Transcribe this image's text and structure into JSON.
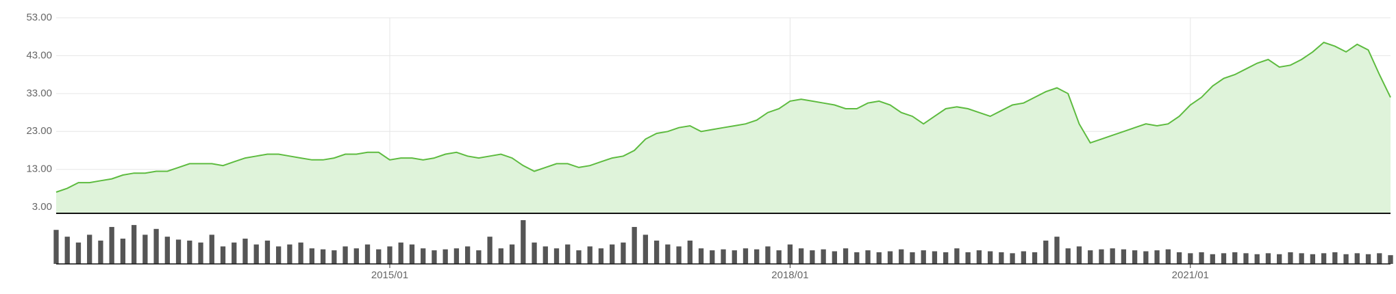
{
  "chart_data": {
    "type": "line",
    "x": [
      "2012/07",
      "2012/08",
      "2012/09",
      "2012/10",
      "2012/11",
      "2012/12",
      "2013/01",
      "2013/02",
      "2013/03",
      "2013/04",
      "2013/05",
      "2013/06",
      "2013/07",
      "2013/08",
      "2013/09",
      "2013/10",
      "2013/11",
      "2013/12",
      "2014/01",
      "2014/02",
      "2014/03",
      "2014/04",
      "2014/05",
      "2014/06",
      "2014/07",
      "2014/08",
      "2014/09",
      "2014/10",
      "2014/11",
      "2014/12",
      "2015/01",
      "2015/02",
      "2015/03",
      "2015/04",
      "2015/05",
      "2015/06",
      "2015/07",
      "2015/08",
      "2015/09",
      "2015/10",
      "2015/11",
      "2015/12",
      "2016/01",
      "2016/02",
      "2016/03",
      "2016/04",
      "2016/05",
      "2016/06",
      "2016/07",
      "2016/08",
      "2016/09",
      "2016/10",
      "2016/11",
      "2016/12",
      "2017/01",
      "2017/02",
      "2017/03",
      "2017/04",
      "2017/05",
      "2017/06",
      "2017/07",
      "2017/08",
      "2017/09",
      "2017/10",
      "2017/11",
      "2017/12",
      "2018/01",
      "2018/02",
      "2018/03",
      "2018/04",
      "2018/05",
      "2018/06",
      "2018/07",
      "2018/08",
      "2018/09",
      "2018/10",
      "2018/11",
      "2018/12",
      "2019/01",
      "2019/02",
      "2019/03",
      "2019/04",
      "2019/05",
      "2019/06",
      "2019/07",
      "2019/08",
      "2019/09",
      "2019/10",
      "2019/11",
      "2019/12",
      "2020/01",
      "2020/02",
      "2020/03",
      "2020/04",
      "2020/05",
      "2020/06",
      "2020/07",
      "2020/08",
      "2020/09",
      "2020/10",
      "2020/11",
      "2020/12",
      "2021/01",
      "2021/02",
      "2021/03",
      "2021/04",
      "2021/05",
      "2021/06",
      "2021/07",
      "2021/08",
      "2021/09",
      "2021/10",
      "2021/11",
      "2021/12",
      "2022/01",
      "2022/02",
      "2022/03",
      "2022/04",
      "2022/05",
      "2022/06",
      "2022/07"
    ],
    "series": [
      {
        "color": "#5dbb3f",
        "fill": "#dff3da",
        "values": [
          7,
          8,
          9.5,
          9.5,
          10,
          10.5,
          11.5,
          12,
          12,
          12.5,
          12.5,
          13.5,
          14.5,
          14.5,
          14.5,
          14,
          15,
          16,
          16.5,
          17,
          17,
          16.5,
          16,
          15.5,
          15.5,
          16,
          17,
          17,
          17.5,
          17.5,
          15.5,
          16,
          16,
          15.5,
          16,
          17,
          17.5,
          16.5,
          16,
          16.5,
          17,
          16,
          14,
          12.5,
          13.5,
          14.5,
          14.5,
          13.5,
          14,
          15,
          16,
          16.5,
          18,
          21,
          22.5,
          23,
          24,
          24.5,
          23,
          23.5,
          24,
          24.5,
          25,
          26,
          28,
          29,
          31,
          31.5,
          31,
          30.5,
          30,
          29,
          29,
          30.5,
          31,
          30,
          28,
          27,
          25,
          27,
          29,
          29.5,
          29,
          28,
          27,
          28.5,
          30,
          30.5,
          32,
          33.5,
          34.5,
          33,
          25,
          20,
          21,
          22,
          23,
          24,
          25,
          24.5,
          25,
          27,
          30,
          32,
          35,
          37,
          38,
          39.5,
          41,
          42,
          40,
          40.5,
          42,
          44,
          46.5,
          45.5,
          44,
          46,
          44.5,
          38,
          32
        ]
      },
      {
        "color": "#555555",
        "panel": "volume",
        "values": [
          35,
          28,
          22,
          30,
          24,
          38,
          26,
          40,
          30,
          36,
          28,
          25,
          24,
          22,
          30,
          18,
          22,
          26,
          20,
          24,
          18,
          20,
          22,
          16,
          15,
          14,
          18,
          16,
          20,
          15,
          18,
          22,
          20,
          16,
          14,
          15,
          16,
          18,
          14,
          28,
          16,
          20,
          45,
          22,
          18,
          16,
          20,
          14,
          18,
          16,
          20,
          22,
          38,
          30,
          24,
          20,
          18,
          24,
          16,
          14,
          15,
          14,
          16,
          15,
          18,
          14,
          20,
          16,
          14,
          15,
          13,
          16,
          12,
          14,
          12,
          13,
          15,
          12,
          14,
          13,
          12,
          16,
          12,
          14,
          13,
          12,
          11,
          13,
          12,
          24,
          28,
          16,
          18,
          14,
          15,
          16,
          15,
          14,
          13,
          14,
          15,
          12,
          11,
          12,
          10,
          11,
          12,
          11,
          10,
          11,
          10,
          12,
          11,
          10,
          11,
          12,
          10,
          11,
          10,
          11,
          9
        ]
      }
    ],
    "xlim": [
      "2012/07",
      "2022/07"
    ],
    "xticks": [
      "2015/01",
      "2018/01",
      "2021/01"
    ],
    "ylim": [
      1.4,
      53
    ],
    "yticks": [
      {
        "value": 3,
        "label": "3.00"
      },
      {
        "value": 13,
        "label": "13.00"
      },
      {
        "value": 23,
        "label": "23.00"
      },
      {
        "value": 33,
        "label": "33.00"
      },
      {
        "value": 43,
        "label": "43.00"
      },
      {
        "value": 53,
        "label": "53.00"
      }
    ],
    "grid": true
  }
}
